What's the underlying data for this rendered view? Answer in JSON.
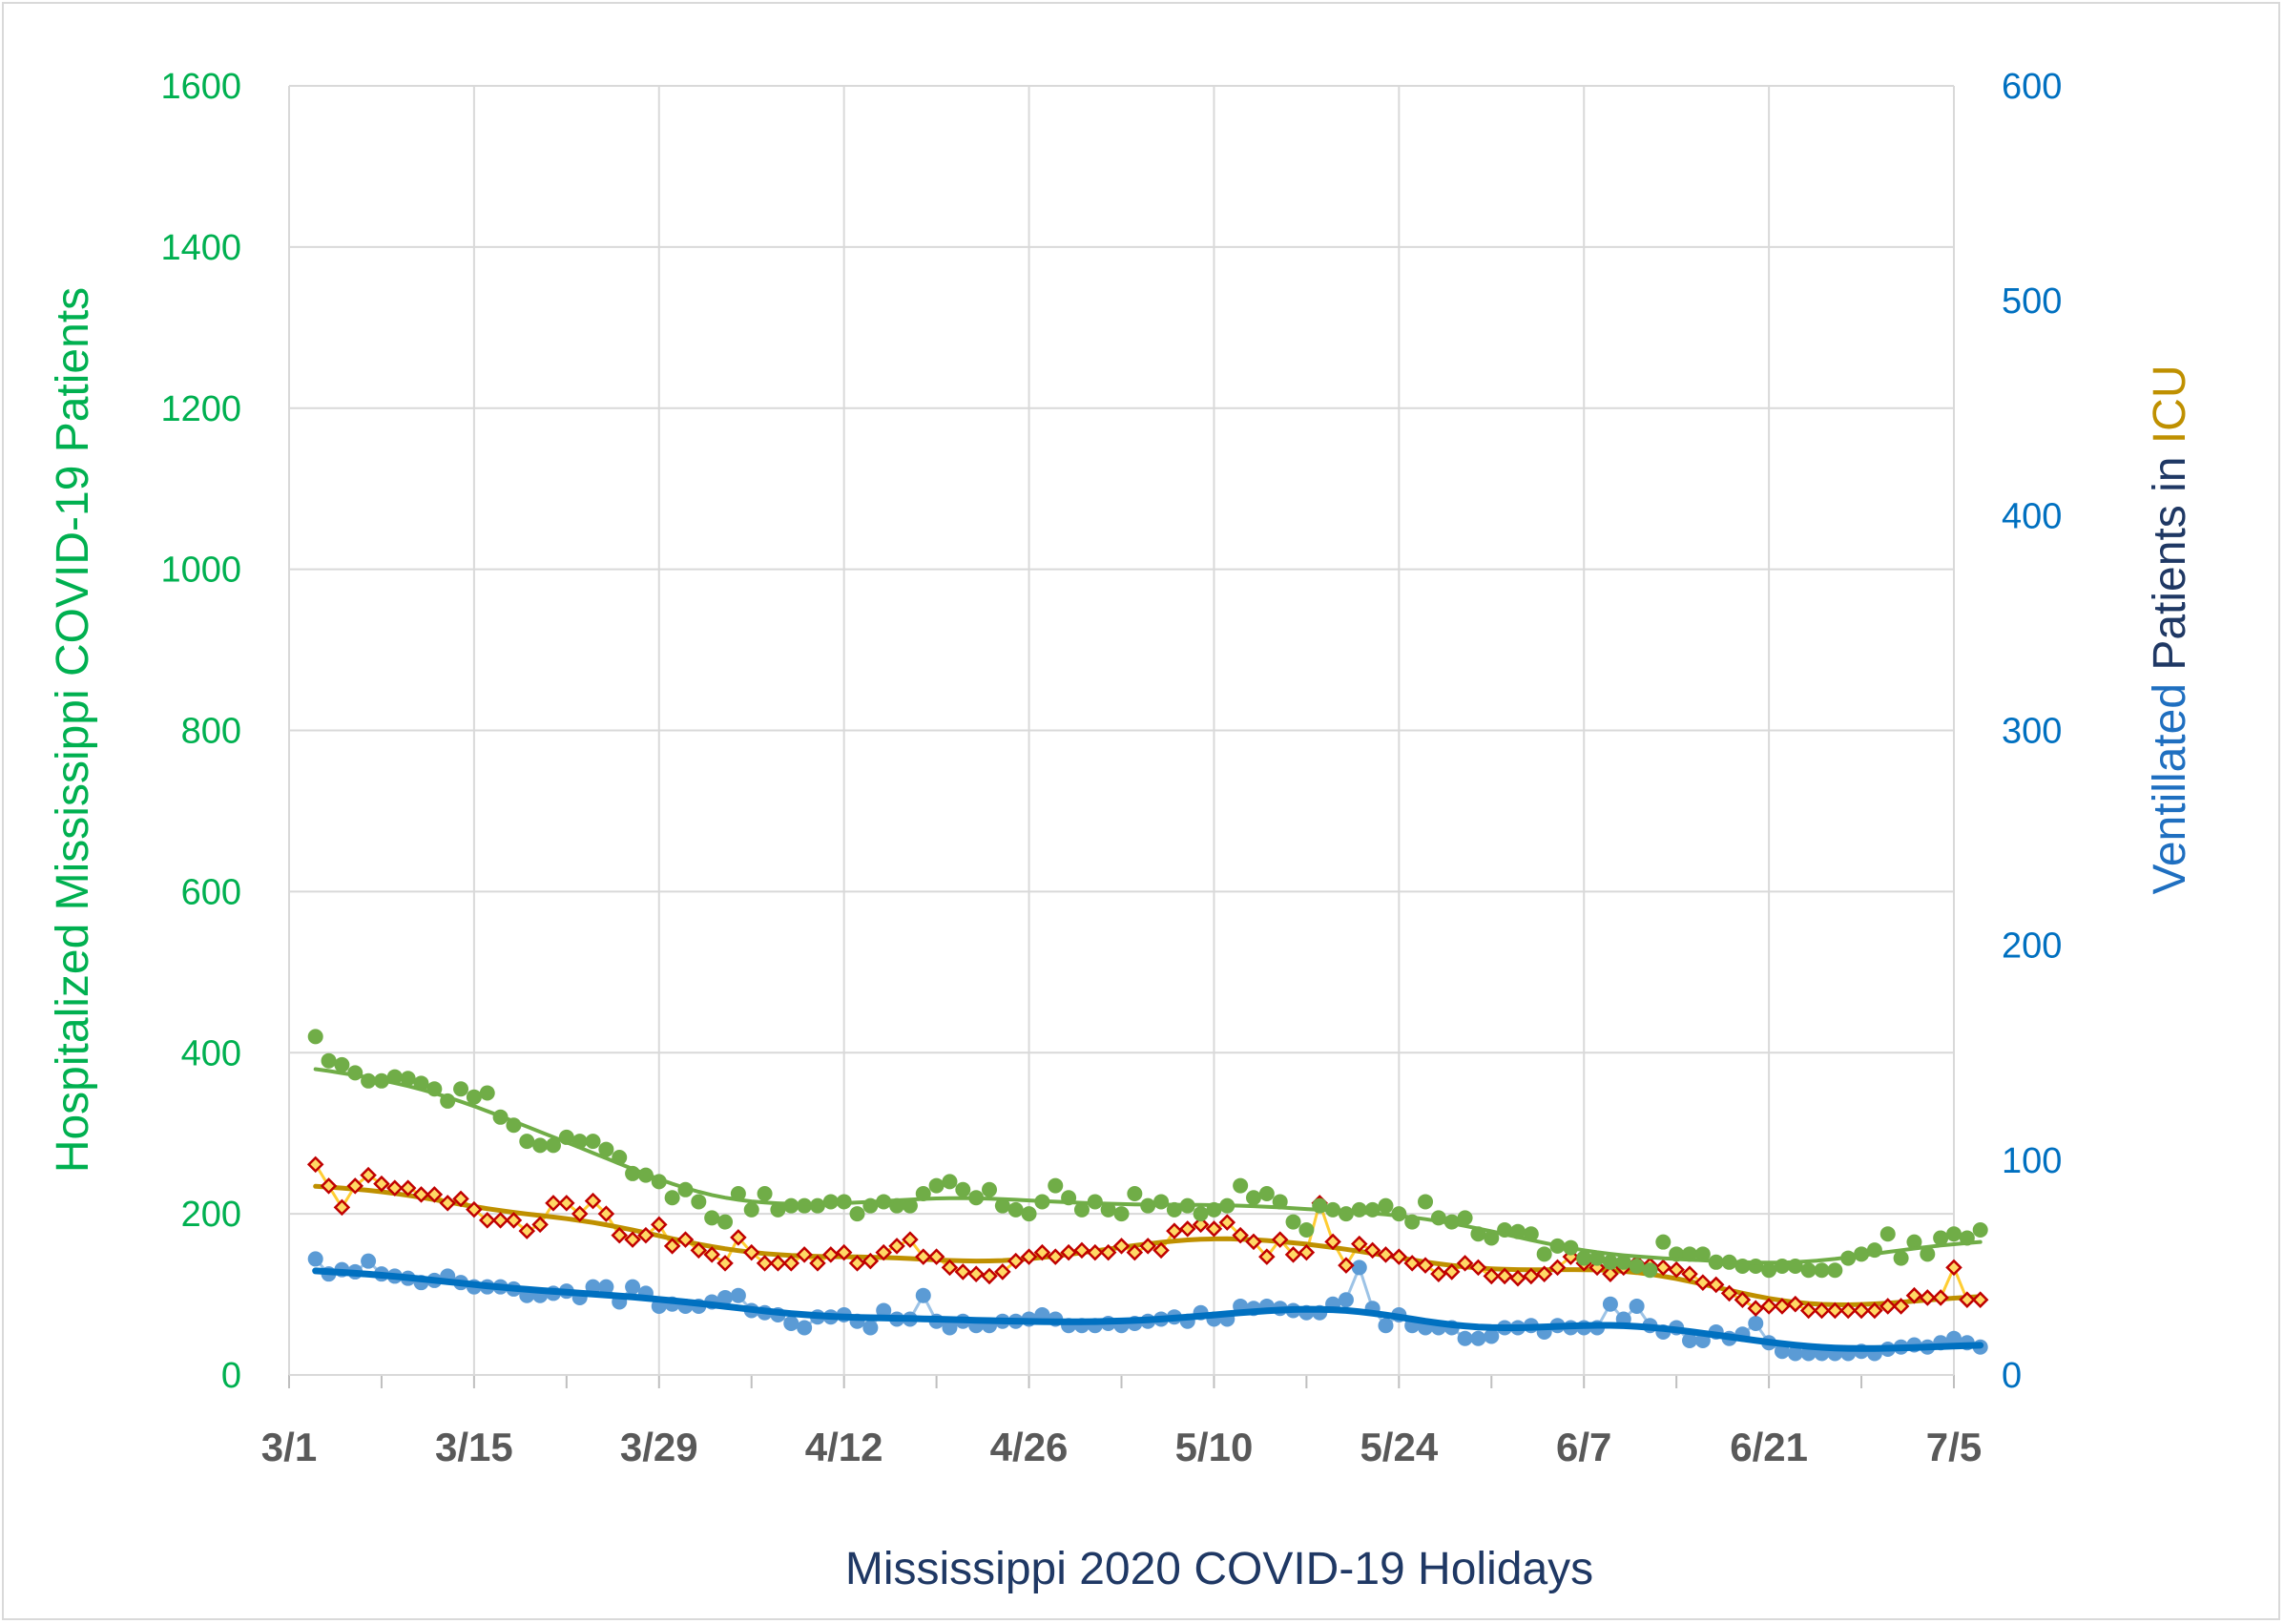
{
  "chart_data": {
    "type": "scatter",
    "title": "",
    "xlabel": "Mississippi 2020 COVID-19 Holidays",
    "ylabel_left": "Hospitalized Mississippi COVID-19 Patients",
    "ylabel_right_parts": [
      {
        "text": "Ventillated",
        "color": "#1f6fc0"
      },
      {
        "text": " Patients in ",
        "color": "#1f3864"
      },
      {
        "text": "ICU",
        "color": "#bf9000"
      }
    ],
    "x_tick_labels": [
      "3/1",
      "3/15",
      "3/29",
      "4/12",
      "4/26",
      "5/10",
      "5/24",
      "6/7",
      "6/21",
      "7/5"
    ],
    "x_range_days": [
      0,
      126
    ],
    "y_left_ticks": [
      "0",
      "200",
      "400",
      "600",
      "800",
      "1000",
      "1200",
      "1400",
      "1600"
    ],
    "y_left_range": [
      0,
      1600
    ],
    "y_right_ticks": [
      "0",
      "100",
      "200",
      "300",
      "400",
      "500",
      "600"
    ],
    "y_right_range": [
      0,
      600
    ],
    "grid": true,
    "legend": "none",
    "colors": {
      "left_axis": "#00b050",
      "right_axis": "#0070c0",
      "x_axis_title": "#1f3864",
      "hosp_points": "#70ad47",
      "hosp_trend": "#70ad47",
      "icu_points": "#c00000",
      "icu_fill": "#ffd966",
      "icu_line": "#ffc000",
      "icu_trend": "#bf9000",
      "vent_points": "#5b9bd5",
      "vent_trend": "#0070c0"
    },
    "series": [
      {
        "key": "hospitalized",
        "axis": "left",
        "start_day": 2,
        "values": [
          420,
          390,
          385,
          375,
          365,
          365,
          370,
          368,
          362,
          355,
          340,
          355,
          345,
          350,
          320,
          310,
          290,
          285,
          285,
          295,
          290,
          290,
          280,
          270,
          250,
          248,
          240,
          220,
          230,
          215,
          195,
          190,
          225,
          205,
          225,
          205,
          210,
          210,
          210,
          215,
          215,
          200,
          210,
          215,
          210,
          210,
          225,
          235,
          240,
          230,
          220,
          230,
          210,
          205,
          200,
          215,
          235,
          220,
          205,
          215,
          205,
          200,
          225,
          210,
          215,
          205,
          210,
          200,
          205,
          210,
          235,
          220,
          225,
          215,
          190,
          180,
          210,
          205,
          200,
          205,
          205,
          210,
          200,
          190,
          215,
          195,
          190,
          195,
          175,
          170,
          180,
          178,
          175,
          150,
          160,
          158,
          145,
          145,
          140,
          140,
          135,
          130,
          165,
          150,
          150,
          150,
          140,
          140,
          135,
          135,
          130,
          135,
          135,
          130,
          130,
          130,
          145,
          150,
          155,
          175,
          145,
          165,
          150,
          170,
          175,
          170,
          180
        ]
      },
      {
        "key": "icu",
        "axis": "right",
        "start_day": 2,
        "values": [
          98,
          88,
          78,
          88,
          93,
          89,
          87,
          87,
          84,
          84,
          80,
          82,
          77,
          72,
          72,
          72,
          67,
          70,
          80,
          80,
          75,
          81,
          75,
          65,
          63,
          65,
          70,
          60,
          63,
          58,
          56,
          52,
          64,
          57,
          52,
          52,
          52,
          56,
          52,
          56,
          57,
          52,
          53,
          57,
          60,
          63,
          55,
          55,
          50,
          48,
          47,
          46,
          48,
          53,
          55,
          57,
          55,
          57,
          58,
          57,
          57,
          60,
          57,
          60,
          58,
          67,
          68,
          70,
          68,
          71,
          65,
          62,
          55,
          63,
          56,
          57,
          80,
          62,
          51,
          61,
          58,
          56,
          55,
          52,
          51,
          47,
          48,
          52,
          50,
          46,
          46,
          45,
          46,
          47,
          50,
          55,
          52,
          50,
          47,
          50,
          52,
          51,
          50,
          49,
          47,
          43,
          42,
          38,
          35,
          31,
          32,
          32,
          33,
          30,
          30,
          30,
          30,
          30,
          30,
          32,
          32,
          37,
          36,
          36,
          50,
          35,
          35
        ]
      },
      {
        "key": "ventilated",
        "axis": "right",
        "start_day": 2,
        "values": [
          54,
          47,
          49,
          48,
          53,
          47,
          46,
          45,
          43,
          44,
          46,
          43,
          41,
          41,
          41,
          40,
          37,
          37,
          38,
          39,
          36,
          41,
          41,
          34,
          41,
          38,
          32,
          33,
          32,
          32,
          34,
          36,
          37,
          30,
          29,
          28,
          24,
          22,
          27,
          27,
          28,
          25,
          22,
          30,
          26,
          26,
          37,
          25,
          22,
          25,
          23,
          23,
          25,
          25,
          26,
          28,
          26,
          23,
          23,
          23,
          24,
          23,
          24,
          25,
          26,
          27,
          25,
          29,
          26,
          26,
          32,
          31,
          32,
          31,
          30,
          29,
          29,
          33,
          35,
          50,
          31,
          23,
          28,
          23,
          22,
          22,
          22,
          17,
          17,
          18,
          22,
          22,
          23,
          20,
          23,
          22,
          22,
          22,
          33,
          26,
          32,
          23,
          20,
          22,
          16,
          16,
          20,
          17,
          19,
          24,
          15,
          11,
          10,
          10,
          10,
          10,
          10,
          11,
          10,
          12,
          13,
          14,
          13,
          15,
          17,
          15,
          13
        ]
      }
    ]
  }
}
